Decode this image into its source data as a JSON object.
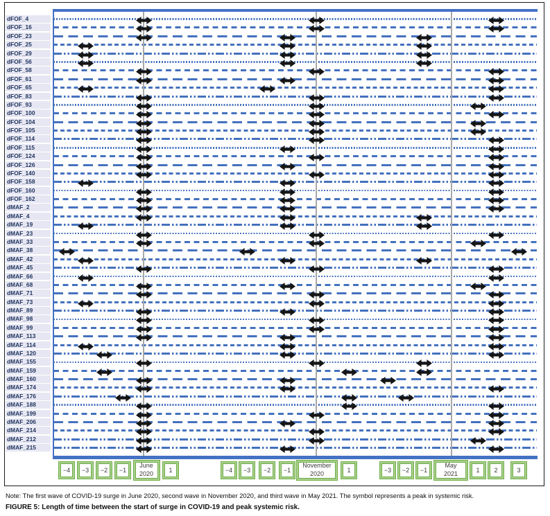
{
  "figure": {
    "note": "Note: The first wave of COVID-19 surge in June 2020, second wave in November 2020, and third wave in May 2021. The symbol represents a peak in systemic risk.",
    "caption": "FIGURE 5: Length of time between the start of surge in COVID-19 and peak systemic risk."
  },
  "colors": {
    "line_blue": "#4471BE",
    "plot_border_blue": "#4472C4",
    "wave_line_gray": "#A8A8A8",
    "marker_black": "#151515",
    "row_label_bg": "#E7E7F3",
    "row_label_text": "#20355E",
    "tick_border_green": "#70AD47",
    "tick_border_light_green": "#A9D18E"
  },
  "chart_data": {
    "type": "scatter",
    "subtype": "event-timeline-dot-plot",
    "title": "FIGURE 5: Length of time between the start of surge in COVID-19 and peak systemic risk.",
    "note": "Note: The first wave of COVID-19 surge in June 2020, second wave in November 2020, and third wave in May 2021. The symbol represents a peak in systemic risk.",
    "marker_symbol": "double-headed-arrow",
    "xlabel": "Months relative to each COVID-19 wave (June 2020, November 2020, May 2021)",
    "ylabel": "Fund identifier",
    "legend": "none",
    "grid": "off",
    "x_axis": {
      "waves": [
        {
          "name": "june-2020",
          "line_label": [
            "June",
            "2020"
          ],
          "ticks": [
            {
              "label": "−4",
              "month": -4
            },
            {
              "label": "−3",
              "month": -3
            },
            {
              "label": "−2",
              "month": -2
            },
            {
              "label": "−1",
              "month": -1
            },
            {
              "label": "1",
              "month": 1
            }
          ]
        },
        {
          "name": "november-2020",
          "line_label": [
            "November",
            "2020"
          ],
          "ticks": [
            {
              "label": "−4",
              "month": -4
            },
            {
              "label": "−3",
              "month": -3
            },
            {
              "label": "−2",
              "month": -2
            },
            {
              "label": "−1",
              "month": -1
            },
            {
              "label": "1",
              "month": 1
            }
          ]
        },
        {
          "name": "may-2021",
          "line_label": [
            "May",
            "2021"
          ],
          "ticks": [
            {
              "label": "−3",
              "month": -3
            },
            {
              "label": "−2",
              "month": -2
            },
            {
              "label": "−1",
              "month": -1
            },
            {
              "label": "1",
              "month": 1
            },
            {
              "label": "2",
              "month": 2
            },
            {
              "label": "3",
              "month": 3
            }
          ]
        }
      ]
    },
    "rows": [
      {
        "label": "dFOF_4",
        "line_style": "dotted",
        "peaks": [
          0,
          0,
          2
        ]
      },
      {
        "label": "dFOF_16",
        "line_style": "dash",
        "peaks": [
          0,
          0,
          2
        ]
      },
      {
        "label": "dFOF_23",
        "line_style": "longdash",
        "peaks": [
          0,
          -1,
          -1
        ]
      },
      {
        "label": "dFOF_25",
        "line_style": "densedash",
        "peaks": [
          -3,
          -1,
          -1
        ]
      },
      {
        "label": "dFOF_29",
        "line_style": "dashdotdot",
        "peaks": [
          -3,
          -1,
          -1
        ]
      },
      {
        "label": "dFOF_56",
        "line_style": "dotted",
        "peaks": [
          -3,
          -1,
          -1
        ]
      },
      {
        "label": "dFOF_58",
        "line_style": "dash",
        "peaks": [
          0,
          0,
          2
        ]
      },
      {
        "label": "dFOF_61",
        "line_style": "longdash",
        "peaks": [
          0,
          -1,
          2
        ]
      },
      {
        "label": "dFOF_65",
        "line_style": "densedash",
        "peaks": [
          -3,
          -2,
          2
        ]
      },
      {
        "label": "dFOF_83",
        "line_style": "dashdotdot",
        "peaks": [
          0,
          0,
          2
        ]
      },
      {
        "label": "dFOF_93",
        "line_style": "dotted",
        "peaks": [
          0,
          0,
          1
        ]
      },
      {
        "label": "dFOF_100",
        "line_style": "dash",
        "peaks": [
          0,
          0,
          2
        ]
      },
      {
        "label": "dFOF_104",
        "line_style": "longdash",
        "peaks": [
          0,
          0,
          1
        ]
      },
      {
        "label": "dFOF_105",
        "line_style": "densedash",
        "peaks": [
          0,
          0,
          1
        ]
      },
      {
        "label": "dFOF_114",
        "line_style": "dashdotdot",
        "peaks": [
          0,
          0,
          2
        ]
      },
      {
        "label": "dFOF_115",
        "line_style": "dotted",
        "peaks": [
          0,
          -1,
          2
        ]
      },
      {
        "label": "dFOF_124",
        "line_style": "dash",
        "peaks": [
          0,
          0,
          2
        ]
      },
      {
        "label": "dFOF_126",
        "line_style": "longdash",
        "peaks": [
          0,
          -1,
          2
        ]
      },
      {
        "label": "dFOF_140",
        "line_style": "densedash",
        "peaks": [
          0,
          0,
          2
        ]
      },
      {
        "label": "dFOF_158",
        "line_style": "dashdotdot",
        "peaks": [
          -3,
          -1,
          2
        ]
      },
      {
        "label": "dFOF_160",
        "line_style": "dotted",
        "peaks": [
          0,
          -1,
          2
        ]
      },
      {
        "label": "dFOF_162",
        "line_style": "dash",
        "peaks": [
          0,
          -1,
          2
        ]
      },
      {
        "label": "dMAF_2",
        "line_style": "longdash",
        "peaks": [
          0,
          -1,
          2
        ]
      },
      {
        "label": "dMAF_4",
        "line_style": "densedash",
        "peaks": [
          0,
          -1,
          -1
        ]
      },
      {
        "label": "dMAF_19",
        "line_style": "dashdotdot",
        "peaks": [
          -3,
          -1,
          -1
        ]
      },
      {
        "label": "dMAF_23",
        "line_style": "dotted",
        "peaks": [
          0,
          0,
          2
        ]
      },
      {
        "label": "dMAF_33",
        "line_style": "dash",
        "peaks": [
          0,
          0,
          1
        ]
      },
      {
        "label": "dMAF_38",
        "line_style": "longdash",
        "peaks": [
          -4,
          -3,
          3
        ]
      },
      {
        "label": "dMAF_42",
        "line_style": "densedash",
        "peaks": [
          -3,
          -1,
          -1
        ]
      },
      {
        "label": "dMAF_45",
        "line_style": "dashdotdot",
        "peaks": [
          0,
          0,
          2
        ]
      },
      {
        "label": "dMAF_66",
        "line_style": "dotted",
        "peaks": [
          -3,
          null,
          2
        ]
      },
      {
        "label": "dMAF_68",
        "line_style": "dash",
        "peaks": [
          0,
          -1,
          1
        ]
      },
      {
        "label": "dMAF_71",
        "line_style": "longdash",
        "peaks": [
          0,
          0,
          2
        ]
      },
      {
        "label": "dMAF_73",
        "line_style": "densedash",
        "peaks": [
          -3,
          0,
          2
        ]
      },
      {
        "label": "dMAF_89",
        "line_style": "dashdotdot",
        "peaks": [
          0,
          -1,
          2
        ]
      },
      {
        "label": "dMAF_98",
        "line_style": "dotted",
        "peaks": [
          0,
          0,
          2
        ]
      },
      {
        "label": "dMAF_99",
        "line_style": "dash",
        "peaks": [
          0,
          0,
          2
        ]
      },
      {
        "label": "dMAF_113",
        "line_style": "longdash",
        "peaks": [
          0,
          -1,
          2
        ]
      },
      {
        "label": "dMAF_114",
        "line_style": "densedash",
        "peaks": [
          -3,
          -1,
          2
        ]
      },
      {
        "label": "dMAF_120",
        "line_style": "dashdotdot",
        "peaks": [
          -2,
          -1,
          2
        ]
      },
      {
        "label": "dMAF_155",
        "line_style": "dotted",
        "peaks": [
          0,
          0,
          -1
        ]
      },
      {
        "label": "dMAF_159",
        "line_style": "dash",
        "peaks": [
          -2,
          1,
          -1
        ]
      },
      {
        "label": "dMAF_160",
        "line_style": "longdash",
        "peaks": [
          0,
          -1,
          -3
        ]
      },
      {
        "label": "dMAF_174",
        "line_style": "densedash",
        "peaks": [
          0,
          -1,
          2
        ]
      },
      {
        "label": "dMAF_176",
        "line_style": "dashdotdot",
        "peaks": [
          -1,
          1,
          -2
        ]
      },
      {
        "label": "dMAF_188",
        "line_style": "dotted",
        "peaks": [
          0,
          1,
          2
        ]
      },
      {
        "label": "dMAF_199",
        "line_style": "dash",
        "peaks": [
          0,
          0,
          2
        ]
      },
      {
        "label": "dMAF_206",
        "line_style": "longdash",
        "peaks": [
          0,
          -1,
          2
        ]
      },
      {
        "label": "dMAF_214",
        "line_style": "densedash",
        "peaks": [
          0,
          0,
          2
        ]
      },
      {
        "label": "dMAF_212",
        "line_style": "dashdotdot",
        "peaks": [
          0,
          0,
          1
        ]
      },
      {
        "label": "dMAF_215",
        "line_style": "dashdotdot",
        "peaks": [
          0,
          -1,
          2
        ]
      }
    ]
  }
}
